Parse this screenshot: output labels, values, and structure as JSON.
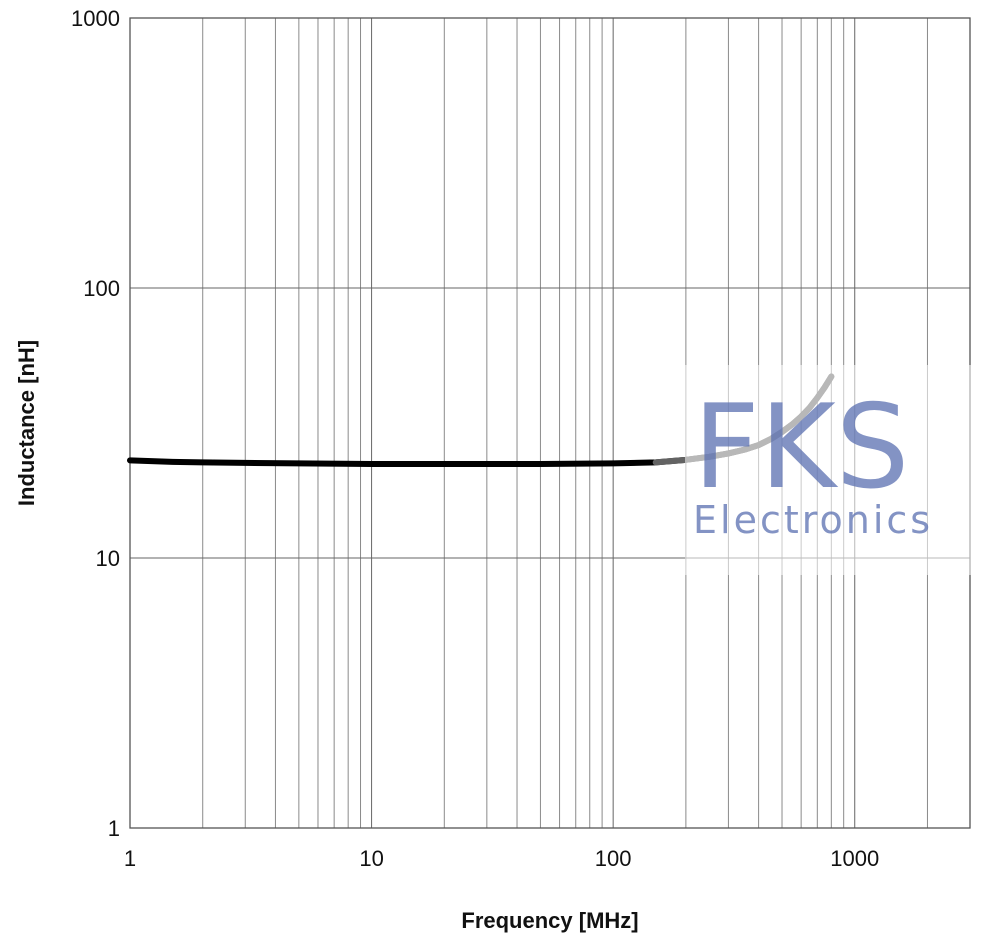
{
  "chart_data": {
    "type": "line",
    "xlabel": "Frequency [MHz]",
    "ylabel": "Inductance [nH]",
    "x_scale": "log",
    "y_scale": "log",
    "xlim": [
      1,
      3000
    ],
    "ylim": [
      1,
      1000
    ],
    "grid": true,
    "x_tick_labels": [
      "1",
      "10",
      "100",
      "1000"
    ],
    "y_tick_labels": [
      "1",
      "10",
      "100",
      "1000"
    ],
    "series": [
      {
        "color": "#000000",
        "highlight_color": "#6e6e6e",
        "points": [
          [
            1,
            23.0
          ],
          [
            1.5,
            22.7
          ],
          [
            2,
            22.6
          ],
          [
            3,
            22.5
          ],
          [
            5,
            22.4
          ],
          [
            10,
            22.3
          ],
          [
            20,
            22.3
          ],
          [
            50,
            22.3
          ],
          [
            100,
            22.4
          ],
          [
            150,
            22.6
          ],
          [
            200,
            23.1
          ],
          [
            250,
            23.7
          ],
          [
            300,
            24.4
          ],
          [
            350,
            25.2
          ],
          [
            400,
            26.2
          ],
          [
            450,
            27.6
          ],
          [
            500,
            29.3
          ],
          [
            550,
            31.2
          ],
          [
            600,
            33.4
          ],
          [
            650,
            36.0
          ],
          [
            700,
            39.2
          ],
          [
            750,
            42.8
          ],
          [
            800,
            47.0
          ]
        ]
      }
    ]
  },
  "watermark": {
    "brand": "FKS",
    "sub": "Electronics",
    "color": "#5a6fb0"
  }
}
